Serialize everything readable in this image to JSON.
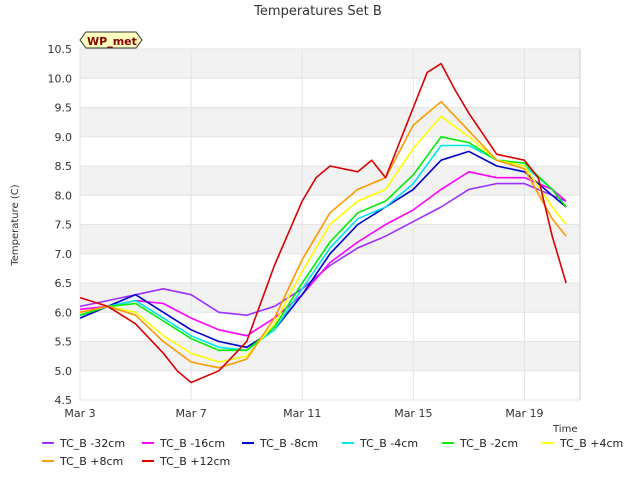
{
  "chart_data": {
    "type": "line",
    "title": "Temperatures Set B",
    "xlabel": "Time",
    "ylabel": "Temperature (C)",
    "ylim": [
      4.5,
      10.5
    ],
    "xlim": [
      0,
      18
    ],
    "y_ticks": [
      4.5,
      5.0,
      5.5,
      6.0,
      6.5,
      7.0,
      7.5,
      8.0,
      8.5,
      9.0,
      9.5,
      10.0,
      10.5
    ],
    "y_tick_labels": [
      "4.5",
      "5.0",
      "5.5",
      "6.0",
      "6.5",
      "7.0",
      "7.5",
      "8.0",
      "8.5",
      "9.0",
      "9.5",
      "10.0",
      "10.5"
    ],
    "x_ticks": [
      0,
      4,
      8,
      12,
      16
    ],
    "x_tick_labels": [
      "Mar 3",
      "Mar 7",
      "Mar 11",
      "Mar 15",
      "Mar 19"
    ],
    "grid": true,
    "legend_position": "bottom",
    "badge": "WP_met",
    "series": [
      {
        "name": "TC_B -32cm",
        "color": "#9b30ff",
        "x": [
          0,
          1,
          2,
          3,
          4,
          5,
          6,
          7,
          8,
          9,
          10,
          11,
          12,
          13,
          14,
          15,
          16,
          17,
          17.5
        ],
        "values": [
          6.1,
          6.2,
          6.3,
          6.4,
          6.3,
          6.0,
          5.95,
          6.1,
          6.4,
          6.8,
          7.1,
          7.3,
          7.55,
          7.8,
          8.1,
          8.2,
          8.2,
          8.0,
          7.9
        ]
      },
      {
        "name": "TC_B -16cm",
        "color": "#ff00ff",
        "x": [
          0,
          1,
          2,
          3,
          4,
          5,
          6,
          7,
          8,
          9,
          10,
          11,
          12,
          13,
          14,
          15,
          16,
          17,
          17.5
        ],
        "values": [
          6.05,
          6.1,
          6.2,
          6.15,
          5.9,
          5.7,
          5.6,
          5.9,
          6.3,
          6.85,
          7.2,
          7.5,
          7.75,
          8.1,
          8.4,
          8.3,
          8.3,
          8.1,
          7.9
        ]
      },
      {
        "name": "TC_B -8cm",
        "color": "#0000cc",
        "x": [
          0,
          1,
          2,
          3,
          4,
          5,
          6,
          7,
          8,
          9,
          10,
          11,
          12,
          13,
          14,
          15,
          16,
          17,
          17.5
        ],
        "values": [
          5.9,
          6.1,
          6.3,
          6.0,
          5.7,
          5.5,
          5.4,
          5.7,
          6.3,
          7.0,
          7.5,
          7.8,
          8.1,
          8.6,
          8.75,
          8.5,
          8.4,
          8.0,
          7.8
        ]
      },
      {
        "name": "TC_B -4cm",
        "color": "#00e5ee",
        "x": [
          0,
          1,
          2,
          3,
          4,
          5,
          6,
          7,
          8,
          9,
          10,
          11,
          12,
          13,
          14,
          15,
          16,
          17,
          17.5
        ],
        "values": [
          5.95,
          6.1,
          6.2,
          5.9,
          5.6,
          5.4,
          5.35,
          5.7,
          6.4,
          7.1,
          7.6,
          7.8,
          8.2,
          8.85,
          8.85,
          8.6,
          8.5,
          8.1,
          7.8
        ]
      },
      {
        "name": "TC_B -2cm",
        "color": "#00ee00",
        "x": [
          0,
          1,
          2,
          3,
          4,
          5,
          6,
          7,
          8,
          9,
          10,
          11,
          12,
          13,
          14,
          15,
          16,
          17,
          17.5
        ],
        "values": [
          5.95,
          6.1,
          6.15,
          5.85,
          5.55,
          5.35,
          5.35,
          5.75,
          6.5,
          7.2,
          7.7,
          7.9,
          8.35,
          9.0,
          8.9,
          8.6,
          8.55,
          8.1,
          7.8
        ]
      },
      {
        "name": "TC_B +4cm",
        "color": "#ffff00",
        "x": [
          0,
          1,
          2,
          3,
          4,
          5,
          6,
          7,
          8,
          9,
          10,
          11,
          12,
          13,
          14,
          15,
          16,
          17,
          17.5
        ],
        "values": [
          6.0,
          6.1,
          6.0,
          5.6,
          5.3,
          5.15,
          5.25,
          5.8,
          6.7,
          7.5,
          7.9,
          8.1,
          8.8,
          9.35,
          9.0,
          8.6,
          8.5,
          7.8,
          7.5
        ]
      },
      {
        "name": "TC_B +8cm",
        "color": "#ff9900",
        "x": [
          0,
          1,
          2,
          3,
          4,
          5,
          6,
          7,
          8,
          9,
          10,
          11,
          12,
          13,
          14,
          15,
          16,
          17,
          17.5
        ],
        "values": [
          6.0,
          6.1,
          5.95,
          5.5,
          5.15,
          5.05,
          5.2,
          5.9,
          6.9,
          7.7,
          8.1,
          8.3,
          9.2,
          9.6,
          9.1,
          8.6,
          8.45,
          7.6,
          7.3
        ]
      },
      {
        "name": "TC_B +12cm",
        "color": "#dd0000",
        "x": [
          0,
          1,
          2,
          3,
          3.5,
          4,
          5,
          6,
          7,
          8,
          8.5,
          9,
          10,
          10.5,
          11,
          12,
          12.5,
          13,
          13.5,
          14,
          15,
          16,
          16.5,
          17,
          17.5
        ],
        "values": [
          6.25,
          6.1,
          5.8,
          5.3,
          5.0,
          4.8,
          5.0,
          5.5,
          6.8,
          7.9,
          8.3,
          8.5,
          8.4,
          8.6,
          8.3,
          9.5,
          10.1,
          10.25,
          9.8,
          9.4,
          8.7,
          8.6,
          8.3,
          7.3,
          6.5
        ]
      }
    ]
  }
}
